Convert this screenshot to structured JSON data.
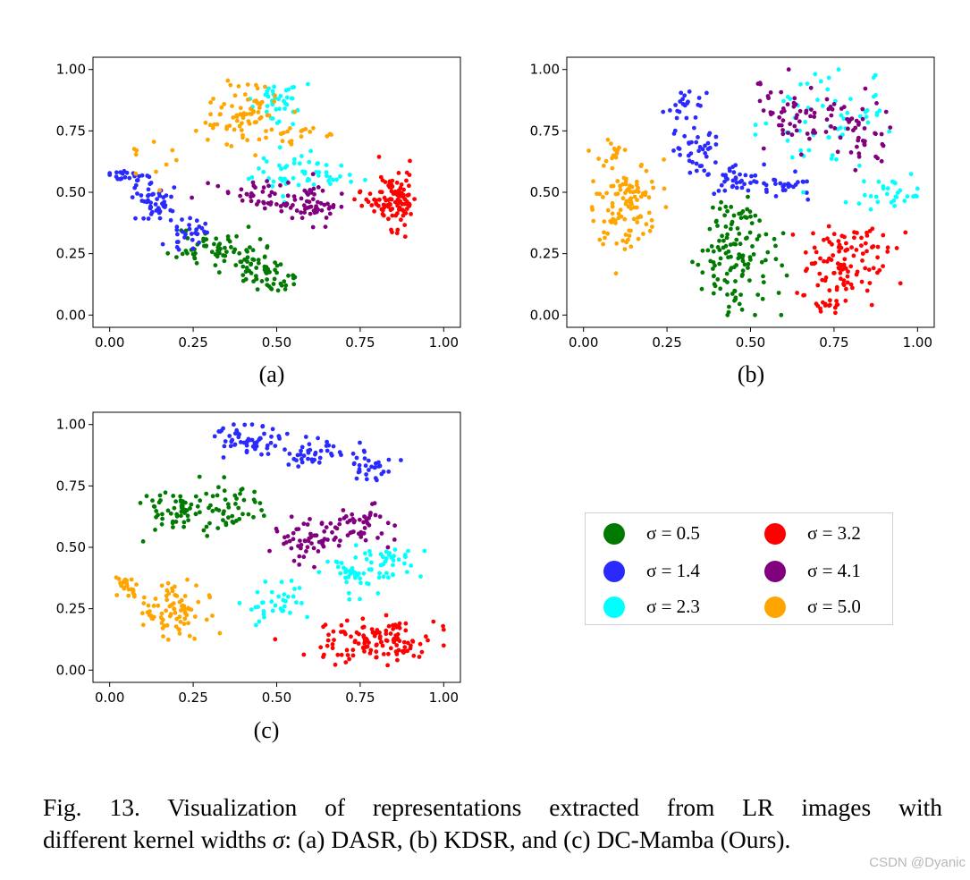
{
  "figure": {
    "panels": [
      {
        "id": "a",
        "label": "(a)"
      },
      {
        "id": "b",
        "label": "(b)"
      },
      {
        "id": "c",
        "label": "(c)"
      }
    ],
    "legend": [
      {
        "label": "σ = 0.5",
        "color": "#007a00"
      },
      {
        "label": "σ = 3.2",
        "color": "#ff0000"
      },
      {
        "label": "σ = 1.4",
        "color": "#2a2aff"
      },
      {
        "label": "σ = 4.1",
        "color": "#800080"
      },
      {
        "label": "σ = 2.3",
        "color": "#00ffff"
      },
      {
        "label": "σ = 5.0",
        "color": "#ffa500"
      }
    ],
    "caption": {
      "line1": "Fig. 13.  Visualization of representations extracted from LR images with",
      "line2_prefix": "different kernel widths ",
      "line2_symbol": "σ",
      "line2_suffix": ": (a) DASR, (b) KDSR, and (c) DC-Mamba (Ours)."
    },
    "watermark": "CSDN @Dyanic"
  },
  "chart_data": [
    {
      "type": "scatter",
      "panel": "(a)",
      "xlim": [
        -0.05,
        1.05
      ],
      "ylim": [
        -0.05,
        1.05
      ],
      "xticks": [
        "0.00",
        "0.25",
        "0.50",
        "0.75",
        "1.00"
      ],
      "yticks": [
        "0.00",
        "0.25",
        "0.50",
        "0.75",
        "1.00"
      ],
      "grid": false,
      "series": [
        {
          "name": "σ = 0.5",
          "color": "#007a00",
          "clusters": [
            {
              "cx": 0.3,
              "cy": 0.28,
              "sx": 0.05,
              "sy": 0.04,
              "n": 50
            },
            {
              "cx": 0.44,
              "cy": 0.2,
              "sx": 0.05,
              "sy": 0.04,
              "n": 50
            },
            {
              "cx": 0.51,
              "cy": 0.13,
              "sx": 0.03,
              "sy": 0.03,
              "n": 20
            }
          ]
        },
        {
          "name": "σ = 1.4",
          "color": "#2a2aff",
          "clusters": [
            {
              "cx": 0.05,
              "cy": 0.56,
              "sx": 0.03,
              "sy": 0.02,
              "n": 25
            },
            {
              "cx": 0.14,
              "cy": 0.46,
              "sx": 0.04,
              "sy": 0.04,
              "n": 45
            },
            {
              "cx": 0.24,
              "cy": 0.34,
              "sx": 0.03,
              "sy": 0.03,
              "n": 30
            }
          ]
        },
        {
          "name": "σ = 2.3",
          "color": "#00ffff",
          "clusters": [
            {
              "cx": 0.5,
              "cy": 0.87,
              "sx": 0.04,
              "sy": 0.04,
              "n": 40
            },
            {
              "cx": 0.57,
              "cy": 0.58,
              "sx": 0.07,
              "sy": 0.04,
              "n": 55
            }
          ]
        },
        {
          "name": "σ = 3.2",
          "color": "#ff0000",
          "clusters": [
            {
              "cx": 0.86,
              "cy": 0.47,
              "sx": 0.03,
              "sy": 0.06,
              "n": 95
            },
            {
              "cx": 0.78,
              "cy": 0.47,
              "sx": 0.03,
              "sy": 0.03,
              "n": 15
            }
          ]
        },
        {
          "name": "σ = 4.1",
          "color": "#800080",
          "clusters": [
            {
              "cx": 0.43,
              "cy": 0.5,
              "sx": 0.07,
              "sy": 0.03,
              "n": 40
            },
            {
              "cx": 0.6,
              "cy": 0.45,
              "sx": 0.04,
              "sy": 0.04,
              "n": 55
            }
          ]
        },
        {
          "name": "σ = 5.0",
          "color": "#ffa500",
          "clusters": [
            {
              "cx": 0.4,
              "cy": 0.82,
              "sx": 0.05,
              "sy": 0.06,
              "n": 75
            },
            {
              "cx": 0.57,
              "cy": 0.74,
              "sx": 0.05,
              "sy": 0.03,
              "n": 20
            },
            {
              "cx": 0.12,
              "cy": 0.62,
              "sx": 0.04,
              "sy": 0.05,
              "n": 10
            }
          ]
        }
      ]
    },
    {
      "type": "scatter",
      "panel": "(b)",
      "xlim": [
        -0.05,
        1.05
      ],
      "ylim": [
        -0.05,
        1.05
      ],
      "xticks": [
        "0.00",
        "0.25",
        "0.50",
        "0.75",
        "1.00"
      ],
      "yticks": [
        "0.00",
        "0.25",
        "0.50",
        "0.75",
        "1.00"
      ],
      "grid": false,
      "series": [
        {
          "name": "σ = 0.5",
          "color": "#007a00",
          "clusters": [
            {
              "cx": 0.45,
              "cy": 0.22,
              "sx": 0.06,
              "sy": 0.1,
              "n": 110
            },
            {
              "cx": 0.43,
              "cy": 0.4,
              "sx": 0.04,
              "sy": 0.04,
              "n": 20
            }
          ]
        },
        {
          "name": "σ = 1.4",
          "color": "#2a2aff",
          "clusters": [
            {
              "cx": 0.29,
              "cy": 0.87,
              "sx": 0.03,
              "sy": 0.04,
              "n": 20
            },
            {
              "cx": 0.33,
              "cy": 0.68,
              "sx": 0.04,
              "sy": 0.05,
              "n": 40
            },
            {
              "cx": 0.46,
              "cy": 0.55,
              "sx": 0.05,
              "sy": 0.03,
              "n": 35
            },
            {
              "cx": 0.6,
              "cy": 0.52,
              "sx": 0.04,
              "sy": 0.02,
              "n": 25
            }
          ]
        },
        {
          "name": "σ = 2.3",
          "color": "#00ffff",
          "clusters": [
            {
              "cx": 0.72,
              "cy": 0.8,
              "sx": 0.09,
              "sy": 0.1,
              "n": 60
            },
            {
              "cx": 0.92,
              "cy": 0.49,
              "sx": 0.05,
              "sy": 0.04,
              "n": 30
            }
          ]
        },
        {
          "name": "σ = 3.2",
          "color": "#ff0000",
          "clusters": [
            {
              "cx": 0.79,
              "cy": 0.22,
              "sx": 0.07,
              "sy": 0.08,
              "n": 110
            },
            {
              "cx": 0.73,
              "cy": 0.04,
              "sx": 0.03,
              "sy": 0.02,
              "n": 15
            }
          ]
        },
        {
          "name": "σ = 4.1",
          "color": "#800080",
          "clusters": [
            {
              "cx": 0.68,
              "cy": 0.82,
              "sx": 0.09,
              "sy": 0.08,
              "n": 70
            },
            {
              "cx": 0.84,
              "cy": 0.7,
              "sx": 0.05,
              "sy": 0.06,
              "n": 30
            }
          ]
        },
        {
          "name": "σ = 5.0",
          "color": "#ffa500",
          "clusters": [
            {
              "cx": 0.12,
              "cy": 0.44,
              "sx": 0.05,
              "sy": 0.09,
              "n": 90
            },
            {
              "cx": 0.09,
              "cy": 0.67,
              "sx": 0.02,
              "sy": 0.03,
              "n": 15
            },
            {
              "cx": 0.18,
              "cy": 0.52,
              "sx": 0.04,
              "sy": 0.03,
              "n": 15
            }
          ]
        }
      ]
    },
    {
      "type": "scatter",
      "panel": "(c)",
      "xlim": [
        -0.05,
        1.05
      ],
      "ylim": [
        -0.05,
        1.05
      ],
      "xticks": [
        "0.00",
        "0.25",
        "0.50",
        "0.75",
        "1.00"
      ],
      "yticks": [
        "0.00",
        "0.25",
        "0.50",
        "0.75",
        "1.00"
      ],
      "grid": false,
      "series": [
        {
          "name": "σ = 0.5",
          "color": "#007a00",
          "clusters": [
            {
              "cx": 0.18,
              "cy": 0.65,
              "sx": 0.05,
              "sy": 0.04,
              "n": 50
            },
            {
              "cx": 0.35,
              "cy": 0.66,
              "sx": 0.07,
              "sy": 0.05,
              "n": 55
            }
          ]
        },
        {
          "name": "σ = 1.4",
          "color": "#2a2aff",
          "clusters": [
            {
              "cx": 0.42,
              "cy": 0.94,
              "sx": 0.06,
              "sy": 0.03,
              "n": 55
            },
            {
              "cx": 0.62,
              "cy": 0.88,
              "sx": 0.05,
              "sy": 0.03,
              "n": 40
            },
            {
              "cx": 0.77,
              "cy": 0.82,
              "sx": 0.04,
              "sy": 0.03,
              "n": 30
            }
          ]
        },
        {
          "name": "σ = 2.3",
          "color": "#00ffff",
          "clusters": [
            {
              "cx": 0.5,
              "cy": 0.27,
              "sx": 0.04,
              "sy": 0.04,
              "n": 35
            },
            {
              "cx": 0.74,
              "cy": 0.4,
              "sx": 0.06,
              "sy": 0.04,
              "n": 55
            },
            {
              "cx": 0.85,
              "cy": 0.45,
              "sx": 0.04,
              "sy": 0.03,
              "n": 20
            }
          ]
        },
        {
          "name": "σ = 3.2",
          "color": "#ff0000",
          "clusters": [
            {
              "cx": 0.8,
              "cy": 0.11,
              "sx": 0.09,
              "sy": 0.04,
              "n": 130
            }
          ]
        },
        {
          "name": "σ = 4.1",
          "color": "#800080",
          "clusters": [
            {
              "cx": 0.58,
              "cy": 0.52,
              "sx": 0.05,
              "sy": 0.04,
              "n": 45
            },
            {
              "cx": 0.73,
              "cy": 0.58,
              "sx": 0.06,
              "sy": 0.05,
              "n": 55
            }
          ]
        },
        {
          "name": "σ = 5.0",
          "color": "#ffa500",
          "clusters": [
            {
              "cx": 0.05,
              "cy": 0.34,
              "sx": 0.02,
              "sy": 0.03,
              "n": 25
            },
            {
              "cx": 0.19,
              "cy": 0.25,
              "sx": 0.05,
              "sy": 0.06,
              "n": 80
            }
          ]
        }
      ]
    }
  ]
}
